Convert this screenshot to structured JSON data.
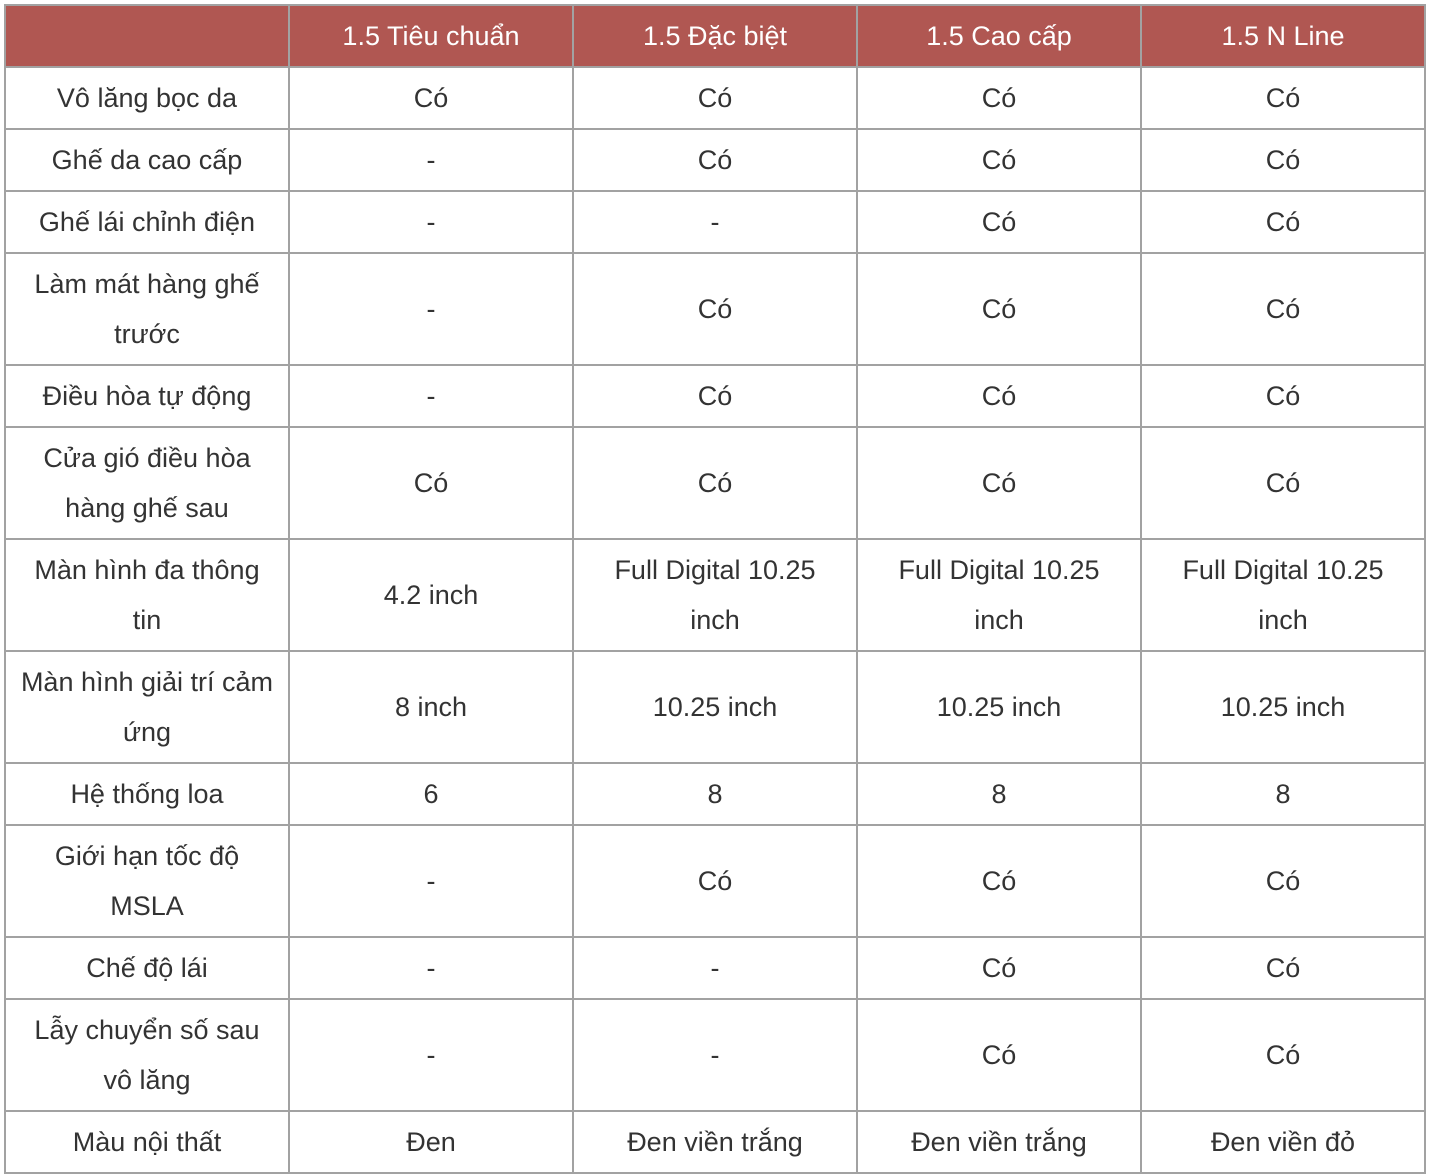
{
  "header": [
    "",
    "1.5 Tiêu chuẩn",
    "1.5 Đặc biệt",
    "1.5 Cao cấp",
    "1.5 N Line"
  ],
  "header_color": "#b05752",
  "rows": [
    [
      "Vô lăng bọc da",
      "Có",
      "Có",
      "Có",
      "Có"
    ],
    [
      "Ghế da cao cấp",
      "-",
      "Có",
      "Có",
      "Có"
    ],
    [
      "Ghế lái chỉnh điện",
      "-",
      "-",
      "Có",
      "Có"
    ],
    [
      "Làm mát hàng ghế trước",
      "-",
      "Có",
      "Có",
      "Có"
    ],
    [
      "Điều hòa tự động",
      "-",
      "Có",
      "Có",
      "Có"
    ],
    [
      "Cửa gió điều hòa hàng ghế sau",
      "Có",
      "Có",
      "Có",
      "Có"
    ],
    [
      "Màn hình đa thông tin",
      "4.2 inch",
      "Full Digital 10.25 inch",
      "Full Digital 10.25 inch",
      "Full Digital 10.25 inch"
    ],
    [
      "Màn hình giải trí cảm ứng",
      "8 inch",
      "10.25 inch",
      "10.25 inch",
      "10.25 inch"
    ],
    [
      "Hệ thống loa",
      "6",
      "8",
      "8",
      "8"
    ],
    [
      "Giới hạn tốc độ MSLA",
      "-",
      "Có",
      "Có",
      "Có"
    ],
    [
      "Chế độ lái",
      "-",
      "-",
      "Có",
      "Có"
    ],
    [
      "Lẫy chuyển số sau vô lăng",
      "-",
      "-",
      "Có",
      "Có"
    ],
    [
      "Màu nội thất",
      "Đen",
      "Đen viền trắng",
      "Đen viền trắng",
      "Đen viền đỏ"
    ]
  ]
}
